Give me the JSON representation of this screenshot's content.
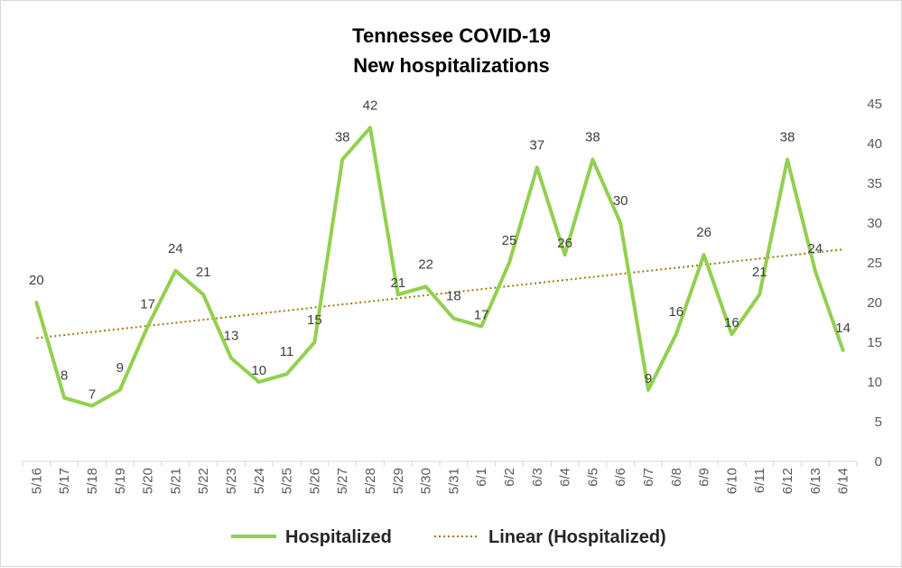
{
  "chart_data": {
    "type": "line",
    "title": "Tennessee COVID-19",
    "subtitle": "New hospitalizations",
    "categories": [
      "5/16",
      "5/17",
      "5/18",
      "5/19",
      "5/20",
      "5/21",
      "5/22",
      "5/23",
      "5/24",
      "5/25",
      "5/26",
      "5/27",
      "5/28",
      "5/29",
      "5/30",
      "5/31",
      "6/1",
      "6/2",
      "6/3",
      "6/4",
      "6/5",
      "6/6",
      "6/7",
      "6/8",
      "6/9",
      "6/10",
      "6/11",
      "6/12",
      "6/13",
      "6/14"
    ],
    "series": [
      {
        "name": "Hospitalized",
        "color": "#92d050",
        "values": [
          20,
          8,
          7,
          9,
          17,
          24,
          21,
          13,
          10,
          11,
          15,
          38,
          42,
          21,
          22,
          18,
          17,
          25,
          37,
          26,
          38,
          30,
          9,
          16,
          26,
          16,
          21,
          38,
          24,
          14
        ]
      }
    ],
    "trendline": {
      "name": "Linear (Hospitalized)",
      "type": "linear",
      "color": "#9a7d0a"
    },
    "ylim": [
      0,
      45
    ],
    "yticks": [
      0,
      5,
      10,
      15,
      20,
      25,
      30,
      35,
      40,
      45
    ],
    "y_axis_side": "right",
    "grid": false,
    "legend": "bottom",
    "data_labels": true
  }
}
